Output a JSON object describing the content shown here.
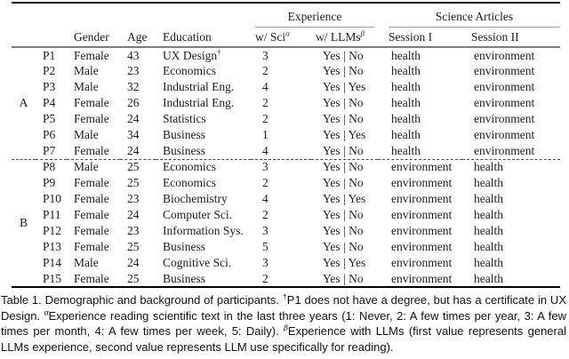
{
  "table": {
    "header": {
      "experience_group": "Experience",
      "science_articles_group": "Science Articles",
      "gender": "Gender",
      "age": "Age",
      "education": "Education",
      "w_sci": "w/ Sci",
      "w_sci_sup": "α",
      "w_llms": "w/ LLMs",
      "w_llms_sup": "β",
      "session1": "Session I",
      "session2": "Session II"
    },
    "groups": [
      {
        "label": "A",
        "participants": [
          {
            "pid": "P1",
            "gender": "Female",
            "age": "43",
            "education": "UX Design",
            "education_sup": "†",
            "sci": "3",
            "llms": "Yes | No",
            "session1": "health",
            "session2": "environment"
          },
          {
            "pid": "P2",
            "gender": "Male",
            "age": "23",
            "education": "Economics",
            "education_sup": "",
            "sci": "2",
            "llms": "Yes | No",
            "session1": "health",
            "session2": "environment"
          },
          {
            "pid": "P3",
            "gender": "Male",
            "age": "32",
            "education": "Industrial Eng.",
            "education_sup": "",
            "sci": "4",
            "llms": "Yes | Yes",
            "session1": "health",
            "session2": "environment"
          },
          {
            "pid": "P4",
            "gender": "Female",
            "age": "26",
            "education": "Industrial Eng.",
            "education_sup": "",
            "sci": "2",
            "llms": "Yes | No",
            "session1": "health",
            "session2": "environment"
          },
          {
            "pid": "P5",
            "gender": "Female",
            "age": "24",
            "education": "Statistics",
            "education_sup": "",
            "sci": "2",
            "llms": "Yes | No",
            "session1": "health",
            "session2": "environment"
          },
          {
            "pid": "P6",
            "gender": "Male",
            "age": "34",
            "education": "Business",
            "education_sup": "",
            "sci": "1",
            "llms": "Yes | Yes",
            "session1": "health",
            "session2": "environment"
          },
          {
            "pid": "P7",
            "gender": "Female",
            "age": "24",
            "education": "Business",
            "education_sup": "",
            "sci": "4",
            "llms": "Yes | No",
            "session1": "health",
            "session2": "environment"
          }
        ]
      },
      {
        "label": "B",
        "participants": [
          {
            "pid": "P8",
            "gender": "Male",
            "age": "25",
            "education": "Economics",
            "education_sup": "",
            "sci": "3",
            "llms": "Yes | No",
            "session1": "environment",
            "session2": "health"
          },
          {
            "pid": "P9",
            "gender": "Female",
            "age": "25",
            "education": "Economics",
            "education_sup": "",
            "sci": "2",
            "llms": "Yes | No",
            "session1": "environment",
            "session2": "health"
          },
          {
            "pid": "P10",
            "gender": "Female",
            "age": "23",
            "education": "Biochemistry",
            "education_sup": "",
            "sci": "4",
            "llms": "Yes | Yes",
            "session1": "environment",
            "session2": "health"
          },
          {
            "pid": "P11",
            "gender": "Female",
            "age": "24",
            "education": "Computer Sci.",
            "education_sup": "",
            "sci": "2",
            "llms": "Yes | No",
            "session1": "environment",
            "session2": "health"
          },
          {
            "pid": "P12",
            "gender": "Female",
            "age": "23",
            "education": "Information Sys.",
            "education_sup": "",
            "sci": "3",
            "llms": "Yes | No",
            "session1": "environment",
            "session2": "health"
          },
          {
            "pid": "P13",
            "gender": "Female",
            "age": "25",
            "education": "Business",
            "education_sup": "",
            "sci": "5",
            "llms": "Yes | No",
            "session1": "environment",
            "session2": "health"
          },
          {
            "pid": "P14",
            "gender": "Male",
            "age": "24",
            "education": "Cognitive Sci.",
            "education_sup": "",
            "sci": "3",
            "llms": "Yes | Yes",
            "session1": "environment",
            "session2": "health"
          },
          {
            "pid": "P15",
            "gender": "Female",
            "age": "25",
            "education": "Business",
            "education_sup": "",
            "sci": "2",
            "llms": "Yes | No",
            "session1": "environment",
            "session2": "health"
          }
        ]
      }
    ]
  },
  "caption": {
    "segments": [
      {
        "text": "Table 1.  Demographic and background of participants. "
      },
      {
        "sup": "†"
      },
      {
        "text": "P1 does not have a degree, but has a certificate in UX Design. "
      },
      {
        "sup": "α"
      },
      {
        "text": "Experience reading scientific text in the last three years (1: Never, 2: A few times per year, 3: A few times per month, 4: A few times per week, 5: Daily). "
      },
      {
        "sup": "β"
      },
      {
        "text": "Experience with LLMs (first value represents general LLMs experience, second value represents LLM use specifically for reading)."
      }
    ]
  },
  "colors": {
    "text": "#1a1a1a",
    "rule_heavy": "#000000",
    "rule_mid": "#7d7d7d",
    "rule_light": "#9b9b9b"
  }
}
